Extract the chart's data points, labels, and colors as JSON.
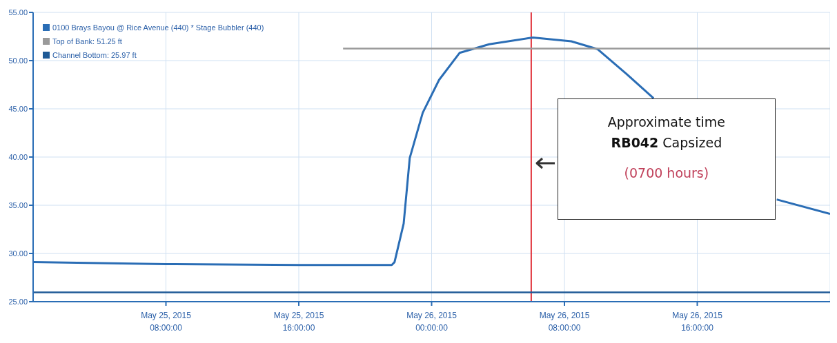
{
  "chart_data": {
    "type": "line",
    "x": [
      "2015-05-25T00:00",
      "2015-05-25T08:00",
      "2015-05-25T16:00",
      "2015-05-25T21:36",
      "2015-05-25T21:46",
      "2015-05-25T22:19",
      "2015-05-25T22:41",
      "2015-05-25T23:28",
      "2015-05-26T00:27",
      "2015-05-26T01:41",
      "2015-05-26T03:28",
      "2015-05-26T06:06",
      "2015-05-26T08:25",
      "2015-05-26T09:59",
      "2015-05-26T11:45",
      "2015-05-26T13:22",
      "2015-05-26T18:00",
      "2015-05-26T20:47",
      "2015-05-27T00:00"
    ],
    "series": [
      {
        "name": "0100 Brays Bayou @ Rice Avenue (440) * Stage Bubbler (440)",
        "color": "#2a6db5",
        "values": [
          29.1,
          28.9,
          28.8,
          28.8,
          29.1,
          33.1,
          39.9,
          44.6,
          48.0,
          50.8,
          51.7,
          52.4,
          52.0,
          51.2,
          48.6,
          46.1,
          null,
          35.6,
          34.1
        ]
      },
      {
        "name": "Top of Bank: 51.25 ft",
        "color": "#9a9a9a",
        "x": [
          "2015-05-25T18:40",
          "2015-05-27T00:00"
        ],
        "values": [
          51.25,
          51.25
        ]
      },
      {
        "name": "Channel Bottom: 25.97 ft",
        "color": "#1f5a96",
        "x": [
          "2015-05-25T00:00",
          "2015-05-27T00:00"
        ],
        "values": [
          25.97,
          25.97
        ]
      }
    ],
    "xlim": [
      "2015-05-25T00:00",
      "2015-05-27T00:00"
    ],
    "xticks": [
      {
        "value": "2015-05-25T08:00",
        "label": "May 25, 2015\n08:00:00"
      },
      {
        "value": "2015-05-25T16:00",
        "label": "May 25, 2015\n16:00:00"
      },
      {
        "value": "2015-05-26T00:00",
        "label": "May 26, 2015\n00:00:00"
      },
      {
        "value": "2015-05-26T08:00",
        "label": "May 26, 2015\n08:00:00"
      },
      {
        "value": "2015-05-26T16:00",
        "label": "May 26, 2015\n16:00:00"
      }
    ],
    "ylim": [
      25,
      55
    ],
    "yticks": [
      {
        "value": 25,
        "label": "25.00"
      },
      {
        "value": 30,
        "label": "30.00"
      },
      {
        "value": 35,
        "label": "35.00"
      },
      {
        "value": 40,
        "label": "40.00"
      },
      {
        "value": 45,
        "label": "45.00"
      },
      {
        "value": 50,
        "label": "50.00"
      },
      {
        "value": 55,
        "label": "55.00"
      }
    ],
    "ref_lines": [
      {
        "axis": "x",
        "value": "2015-05-26T06:00",
        "color": "#e0303a"
      }
    ],
    "annotations": [
      "Approximate time",
      "RB042 Capsized",
      "(0700 hours)"
    ],
    "grid": true,
    "legend": "top left",
    "marker": "none",
    "line_style": "solid"
  }
}
